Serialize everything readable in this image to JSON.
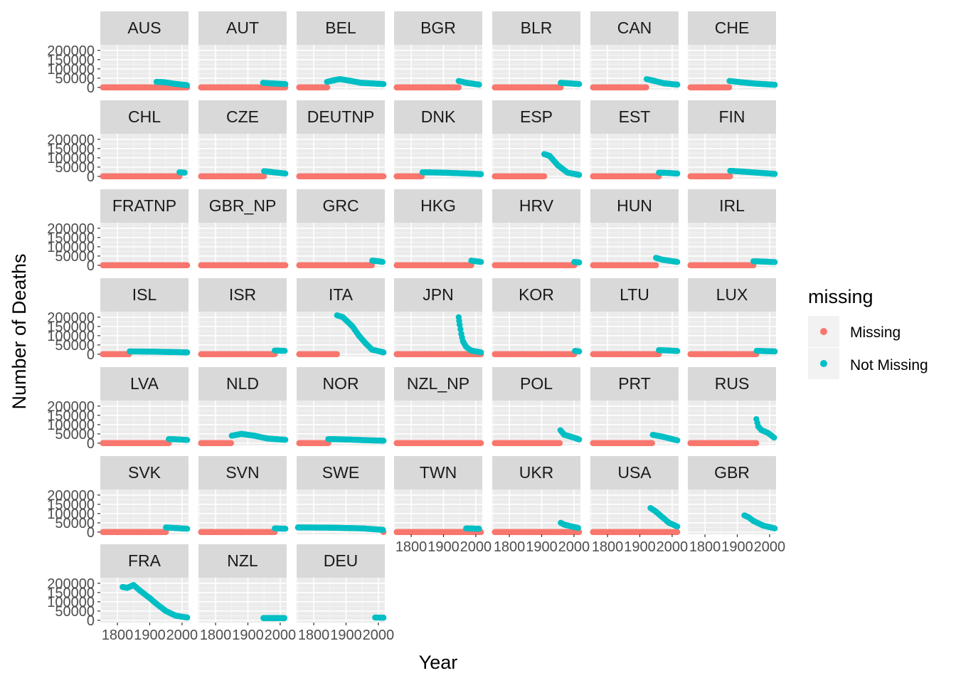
{
  "chart_data": {
    "type": "scatter",
    "xlabel": "Year",
    "ylabel": "Number of Deaths",
    "x_ticks": [
      1800,
      1900,
      2000
    ],
    "y_ticks": [
      0,
      50000,
      100000,
      150000,
      200000
    ],
    "xlim": [
      1747,
      2020
    ],
    "ylim": [
      -12000,
      230000
    ],
    "legend": {
      "title": "missing",
      "position": "right",
      "entries": [
        {
          "label": "Missing",
          "color": "#F8766D"
        },
        {
          "label": "Not Missing",
          "color": "#00BFC4"
        }
      ]
    },
    "panel_background": "#EBEBEB",
    "strip_background": "#D9D9D9",
    "grid": true,
    "panels": [
      {
        "label": "AUS",
        "missing_range": [
          1755,
          2018
        ],
        "segments": [
          [
            1921,
            30000,
            1945,
            28000
          ],
          [
            1945,
            28000,
            1975,
            20000
          ],
          [
            1975,
            20000,
            2015,
            12000
          ]
        ]
      },
      {
        "label": "AUT",
        "missing_range": [
          1755,
          2018
        ],
        "segments": [
          [
            1947,
            25000,
            1970,
            22000
          ],
          [
            1970,
            22000,
            2016,
            18000
          ]
        ]
      },
      {
        "label": "BEL",
        "missing_range": [
          1755,
          1843
        ],
        "segments": [
          [
            1841,
            30000,
            1880,
            45000
          ],
          [
            1880,
            45000,
            1915,
            35000
          ],
          [
            1915,
            35000,
            1945,
            25000
          ],
          [
            1945,
            25000,
            2016,
            18000
          ]
        ]
      },
      {
        "label": "BGR",
        "missing_range": [
          1755,
          1947
        ],
        "segments": [
          [
            1947,
            35000,
            1970,
            25000
          ],
          [
            1970,
            25000,
            2010,
            15000
          ]
        ]
      },
      {
        "label": "BLR",
        "missing_range": [
          1755,
          1959
        ],
        "segments": [
          [
            1959,
            25000,
            1985,
            22000
          ],
          [
            1985,
            22000,
            2016,
            18000
          ]
        ]
      },
      {
        "label": "CAN",
        "missing_range": [
          1755,
          1921
        ],
        "segments": [
          [
            1921,
            45000,
            1945,
            35000
          ],
          [
            1945,
            35000,
            1975,
            22000
          ],
          [
            1975,
            22000,
            2016,
            15000
          ]
        ]
      },
      {
        "label": "CHE",
        "missing_range": [
          1755,
          1876
        ],
        "segments": [
          [
            1876,
            35000,
            1910,
            28000
          ],
          [
            1910,
            28000,
            1960,
            20000
          ],
          [
            1960,
            20000,
            2016,
            14000
          ]
        ]
      },
      {
        "label": "CHL",
        "missing_range": [
          1755,
          1992
        ],
        "segments": [
          [
            1992,
            22000,
            2008,
            20000
          ]
        ]
      },
      {
        "label": "CZE",
        "missing_range": [
          1755,
          1950
        ],
        "segments": [
          [
            1950,
            28000,
            1980,
            22000
          ],
          [
            1980,
            22000,
            2016,
            15000
          ]
        ]
      },
      {
        "label": "DEUTNP",
        "missing_range": [
          1755,
          2018
        ],
        "segments": []
      },
      {
        "label": "DNK",
        "missing_range": [
          1755,
          1835
        ],
        "segments": [
          [
            1835,
            22000,
            1900,
            20000
          ],
          [
            1900,
            20000,
            1960,
            16000
          ],
          [
            1960,
            16000,
            2016,
            12000
          ]
        ]
      },
      {
        "label": "ESP",
        "missing_range": [
          1755,
          1908
        ],
        "segments": [
          [
            1908,
            120000,
            1925,
            110000
          ],
          [
            1925,
            110000,
            1950,
            60000
          ],
          [
            1950,
            60000,
            1980,
            20000
          ],
          [
            1980,
            20000,
            2016,
            8000
          ]
        ]
      },
      {
        "label": "EST",
        "missing_range": [
          1755,
          1959
        ],
        "segments": [
          [
            1959,
            20000,
            1990,
            18000
          ],
          [
            1990,
            18000,
            2016,
            15000
          ]
        ]
      },
      {
        "label": "FIN",
        "missing_range": [
          1755,
          1878
        ],
        "segments": [
          [
            1878,
            30000,
            1920,
            25000
          ],
          [
            1920,
            25000,
            1960,
            20000
          ],
          [
            1960,
            20000,
            2016,
            13000
          ]
        ]
      },
      {
        "label": "FRATNP",
        "missing_range": [
          1755,
          2018
        ],
        "segments": []
      },
      {
        "label": "GBR_NP",
        "missing_range": [
          1755,
          2018
        ],
        "segments": []
      },
      {
        "label": "GRC",
        "missing_range": [
          1755,
          1981
        ],
        "segments": [
          [
            1981,
            25000,
            2000,
            22000
          ],
          [
            2000,
            22000,
            2013,
            18000
          ]
        ]
      },
      {
        "label": "HKG",
        "missing_range": [
          1755,
          1986
        ],
        "segments": [
          [
            1986,
            25000,
            2016,
            18000
          ]
        ]
      },
      {
        "label": "HRV",
        "missing_range": [
          1755,
          2001
        ],
        "segments": [
          [
            2001,
            18000,
            2016,
            15000
          ]
        ]
      },
      {
        "label": "HUN",
        "missing_range": [
          1755,
          1950
        ],
        "segments": [
          [
            1950,
            40000,
            1970,
            30000
          ],
          [
            1970,
            30000,
            2016,
            18000
          ]
        ]
      },
      {
        "label": "IRL",
        "missing_range": [
          1755,
          1950
        ],
        "segments": [
          [
            1950,
            22000,
            1980,
            20000
          ],
          [
            1980,
            20000,
            2016,
            17000
          ]
        ]
      },
      {
        "label": "ISL",
        "missing_range": [
          1755,
          1838
        ],
        "segments": [
          [
            1838,
            15000,
            1900,
            14000
          ],
          [
            1900,
            14000,
            1960,
            12000
          ],
          [
            1960,
            12000,
            2016,
            10000
          ]
        ]
      },
      {
        "label": "ISR",
        "missing_range": [
          1755,
          1983
        ],
        "segments": [
          [
            1983,
            20000,
            2014,
            18000
          ]
        ]
      },
      {
        "label": "ITA",
        "missing_range": [
          1755,
          1872
        ],
        "segments": [
          [
            1872,
            210000,
            1890,
            200000
          ],
          [
            1890,
            200000,
            1905,
            175000
          ],
          [
            1905,
            175000,
            1920,
            150000
          ],
          [
            1920,
            150000,
            1940,
            100000
          ],
          [
            1940,
            100000,
            1960,
            60000
          ],
          [
            1960,
            60000,
            1980,
            25000
          ],
          [
            1980,
            25000,
            2016,
            10000
          ]
        ]
      },
      {
        "label": "JPN",
        "missing_range": [
          1755,
          2018
        ],
        "segments": [
          [
            1947,
            200000,
            1950,
            160000
          ],
          [
            1950,
            160000,
            1955,
            110000
          ],
          [
            1955,
            110000,
            1960,
            70000
          ],
          [
            1960,
            70000,
            1970,
            40000
          ],
          [
            1970,
            40000,
            1985,
            20000
          ],
          [
            1985,
            20000,
            2016,
            10000
          ]
        ]
      },
      {
        "label": "KOR",
        "missing_range": [
          1755,
          2003
        ],
        "segments": [
          [
            2003,
            18000,
            2016,
            15000
          ]
        ]
      },
      {
        "label": "LTU",
        "missing_range": [
          1755,
          1959
        ],
        "segments": [
          [
            1959,
            22000,
            1990,
            20000
          ],
          [
            1990,
            20000,
            2016,
            17000
          ]
        ]
      },
      {
        "label": "LUX",
        "missing_range": [
          1755,
          1960
        ],
        "segments": [
          [
            1960,
            18000,
            2016,
            15000
          ]
        ]
      },
      {
        "label": "LVA",
        "missing_range": [
          1755,
          1959
        ],
        "segments": [
          [
            1959,
            22000,
            1990,
            20000
          ],
          [
            1990,
            20000,
            2016,
            17000
          ]
        ]
      },
      {
        "label": "NLD",
        "missing_range": [
          1755,
          1850
        ],
        "segments": [
          [
            1850,
            40000,
            1880,
            50000
          ],
          [
            1880,
            50000,
            1920,
            40000
          ],
          [
            1920,
            40000,
            1960,
            25000
          ],
          [
            1960,
            25000,
            2016,
            18000
          ]
        ]
      },
      {
        "label": "NOR",
        "missing_range": [
          1755,
          1845
        ],
        "segments": [
          [
            1845,
            22000,
            1900,
            20000
          ],
          [
            1900,
            20000,
            1960,
            16000
          ],
          [
            1960,
            16000,
            2016,
            13000
          ]
        ]
      },
      {
        "label": "NZL_NP",
        "missing_range": [
          1755,
          2018
        ],
        "segments": []
      },
      {
        "label": "POL",
        "missing_range": [
          1755,
          1958
        ],
        "segments": [
          [
            1958,
            70000,
            1970,
            45000
          ],
          [
            1970,
            45000,
            1990,
            35000
          ],
          [
            1990,
            35000,
            2016,
            20000
          ]
        ]
      },
      {
        "label": "PRT",
        "missing_range": [
          1755,
          1940
        ],
        "segments": [
          [
            1940,
            45000,
            1970,
            35000
          ],
          [
            1970,
            35000,
            2016,
            15000
          ]
        ]
      },
      {
        "label": "RUS",
        "missing_range": [
          1755,
          1959
        ],
        "segments": [
          [
            1959,
            130000,
            1965,
            90000
          ],
          [
            1965,
            90000,
            1975,
            70000
          ],
          [
            1975,
            70000,
            1995,
            55000
          ],
          [
            1995,
            55000,
            2014,
            30000
          ]
        ]
      },
      {
        "label": "SVK",
        "missing_range": [
          1755,
          1950
        ],
        "segments": [
          [
            1950,
            25000,
            1980,
            22000
          ],
          [
            1980,
            22000,
            2016,
            18000
          ]
        ]
      },
      {
        "label": "SVN",
        "missing_range": [
          1755,
          1983
        ],
        "segments": [
          [
            1983,
            20000,
            2016,
            18000
          ]
        ]
      },
      {
        "label": "SWE",
        "missing_range": [
          2016,
          2018
        ],
        "segments": [
          [
            1751,
            25000,
            1850,
            24000
          ],
          [
            1850,
            24000,
            1950,
            20000
          ],
          [
            1950,
            20000,
            2014,
            12000
          ]
        ]
      },
      {
        "label": "TWN",
        "missing_range": [
          1755,
          2018
        ],
        "segments": [
          [
            1970,
            20000,
            2010,
            18000
          ]
        ]
      },
      {
        "label": "UKR",
        "missing_range": [
          1755,
          2018
        ],
        "segments": [
          [
            1959,
            50000,
            1970,
            40000
          ],
          [
            1970,
            40000,
            2013,
            22000
          ]
        ]
      },
      {
        "label": "USA",
        "missing_range": [
          1755,
          2018
        ],
        "segments": [
          [
            1933,
            130000,
            1950,
            110000
          ],
          [
            1950,
            110000,
            1970,
            80000
          ],
          [
            1970,
            80000,
            1990,
            50000
          ],
          [
            1990,
            50000,
            2016,
            30000
          ]
        ]
      },
      {
        "label": "GBR",
        "missing_range": null,
        "segments": [
          [
            1922,
            90000,
            1935,
            80000
          ],
          [
            1935,
            80000,
            1950,
            60000
          ],
          [
            1950,
            60000,
            1980,
            35000
          ],
          [
            1980,
            35000,
            2016,
            20000
          ]
        ]
      },
      {
        "label": "FRA",
        "missing_range": null,
        "segments": [
          [
            1816,
            180000,
            1830,
            175000
          ],
          [
            1830,
            175000,
            1850,
            190000
          ],
          [
            1850,
            190000,
            1870,
            160000
          ],
          [
            1870,
            160000,
            1900,
            120000
          ],
          [
            1900,
            120000,
            1920,
            90000
          ],
          [
            1920,
            90000,
            1950,
            50000
          ],
          [
            1950,
            50000,
            1980,
            25000
          ],
          [
            1980,
            25000,
            2016,
            15000
          ]
        ]
      },
      {
        "label": "NZL",
        "missing_range": null,
        "segments": [
          [
            1948,
            12000,
            2013,
            12000
          ]
        ]
      },
      {
        "label": "DEU",
        "missing_range": null,
        "segments": [
          [
            1990,
            15000,
            2016,
            14000
          ]
        ]
      }
    ],
    "panels_per_row": 7
  }
}
